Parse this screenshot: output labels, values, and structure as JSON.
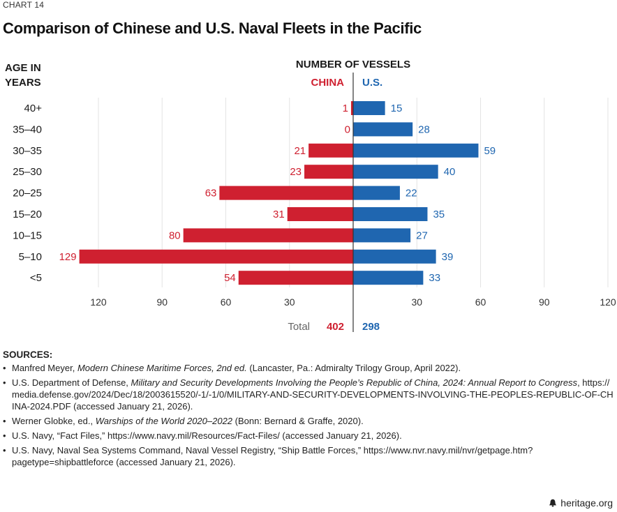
{
  "header": {
    "chart_label": "CHART 14",
    "title": "Comparison of Chinese and U.S. Naval Fleets in the Pacific"
  },
  "colors": {
    "china": "#cf2030",
    "us": "#1f66b0",
    "grid": "#e3e3e3",
    "axis": "#333333",
    "muted": "#666666"
  },
  "chart_data": {
    "type": "bar",
    "orientation": "horizontal-diverging",
    "title": "Comparison of Chinese and U.S. Naval Fleets in the Pacific",
    "ylabel_line1": "AGE IN",
    "ylabel_line2": "YEARS",
    "xlabel": "NUMBER OF VESSELS",
    "categories": [
      "40+",
      "35–40",
      "30–35",
      "25–30",
      "20–25",
      "15–20",
      "10–15",
      "5–10",
      "<5"
    ],
    "series": [
      {
        "name": "CHINA",
        "values": [
          1,
          0,
          21,
          23,
          63,
          31,
          80,
          129,
          54
        ]
      },
      {
        "name": "U.S.",
        "values": [
          15,
          28,
          59,
          40,
          22,
          35,
          27,
          39,
          33
        ]
      }
    ],
    "xlim": [
      0,
      120
    ],
    "ticks": [
      120,
      90,
      60,
      30
    ],
    "tick_labels_left": [
      "120",
      "90",
      "60",
      "30"
    ],
    "tick_labels_right": [
      "30",
      "60",
      "90",
      "120"
    ],
    "grid": true,
    "totals": {
      "label": "Total",
      "china": "402",
      "us": "298"
    }
  },
  "sources": {
    "heading": "SOURCES:",
    "items": [
      {
        "pre": "Manfred Meyer, ",
        "italic": "Modern Chinese Maritime Forces, 2nd ed.",
        "post": " (Lancaster, Pa.: Admiralty Trilogy Group, April 2022)."
      },
      {
        "pre": "U.S. Department of Defense, ",
        "italic": "Military and Security Developments Involving the People’s Republic of China, 2024: Annual Report to Congress",
        "post": ", https://media.defense.gov/2024/Dec/18/2003615520/-1/-1/0/MILITARY-AND-SECURITY-DEVELOPMENTS-INVOLVING-THE-PEOPLES-REPUBLIC-OF-CHINA-2024.PDF (accessed January 21, 2026)."
      },
      {
        "pre": "Werner Globke, ed., ",
        "italic": "Warships of the World 2020–2022",
        "post": " (Bonn: Bernard & Graffe, 2020)."
      },
      {
        "pre": "U.S. Navy, “Fact Files,” https://www.navy.mil/Resources/Fact-Files/ (accessed January 21, 2026).",
        "italic": "",
        "post": ""
      },
      {
        "pre": "U.S. Navy, Naval Sea Systems Command, Naval Vessel Registry, “Ship Battle Forces,” https://www.nvr.navy.mil/nvr/getpage.htm?pagetype=shipbattleforce (accessed January 21, 2026).",
        "italic": "",
        "post": ""
      }
    ]
  },
  "footer": {
    "brand": "heritage.org",
    "icon": "liberty-bell-icon"
  }
}
